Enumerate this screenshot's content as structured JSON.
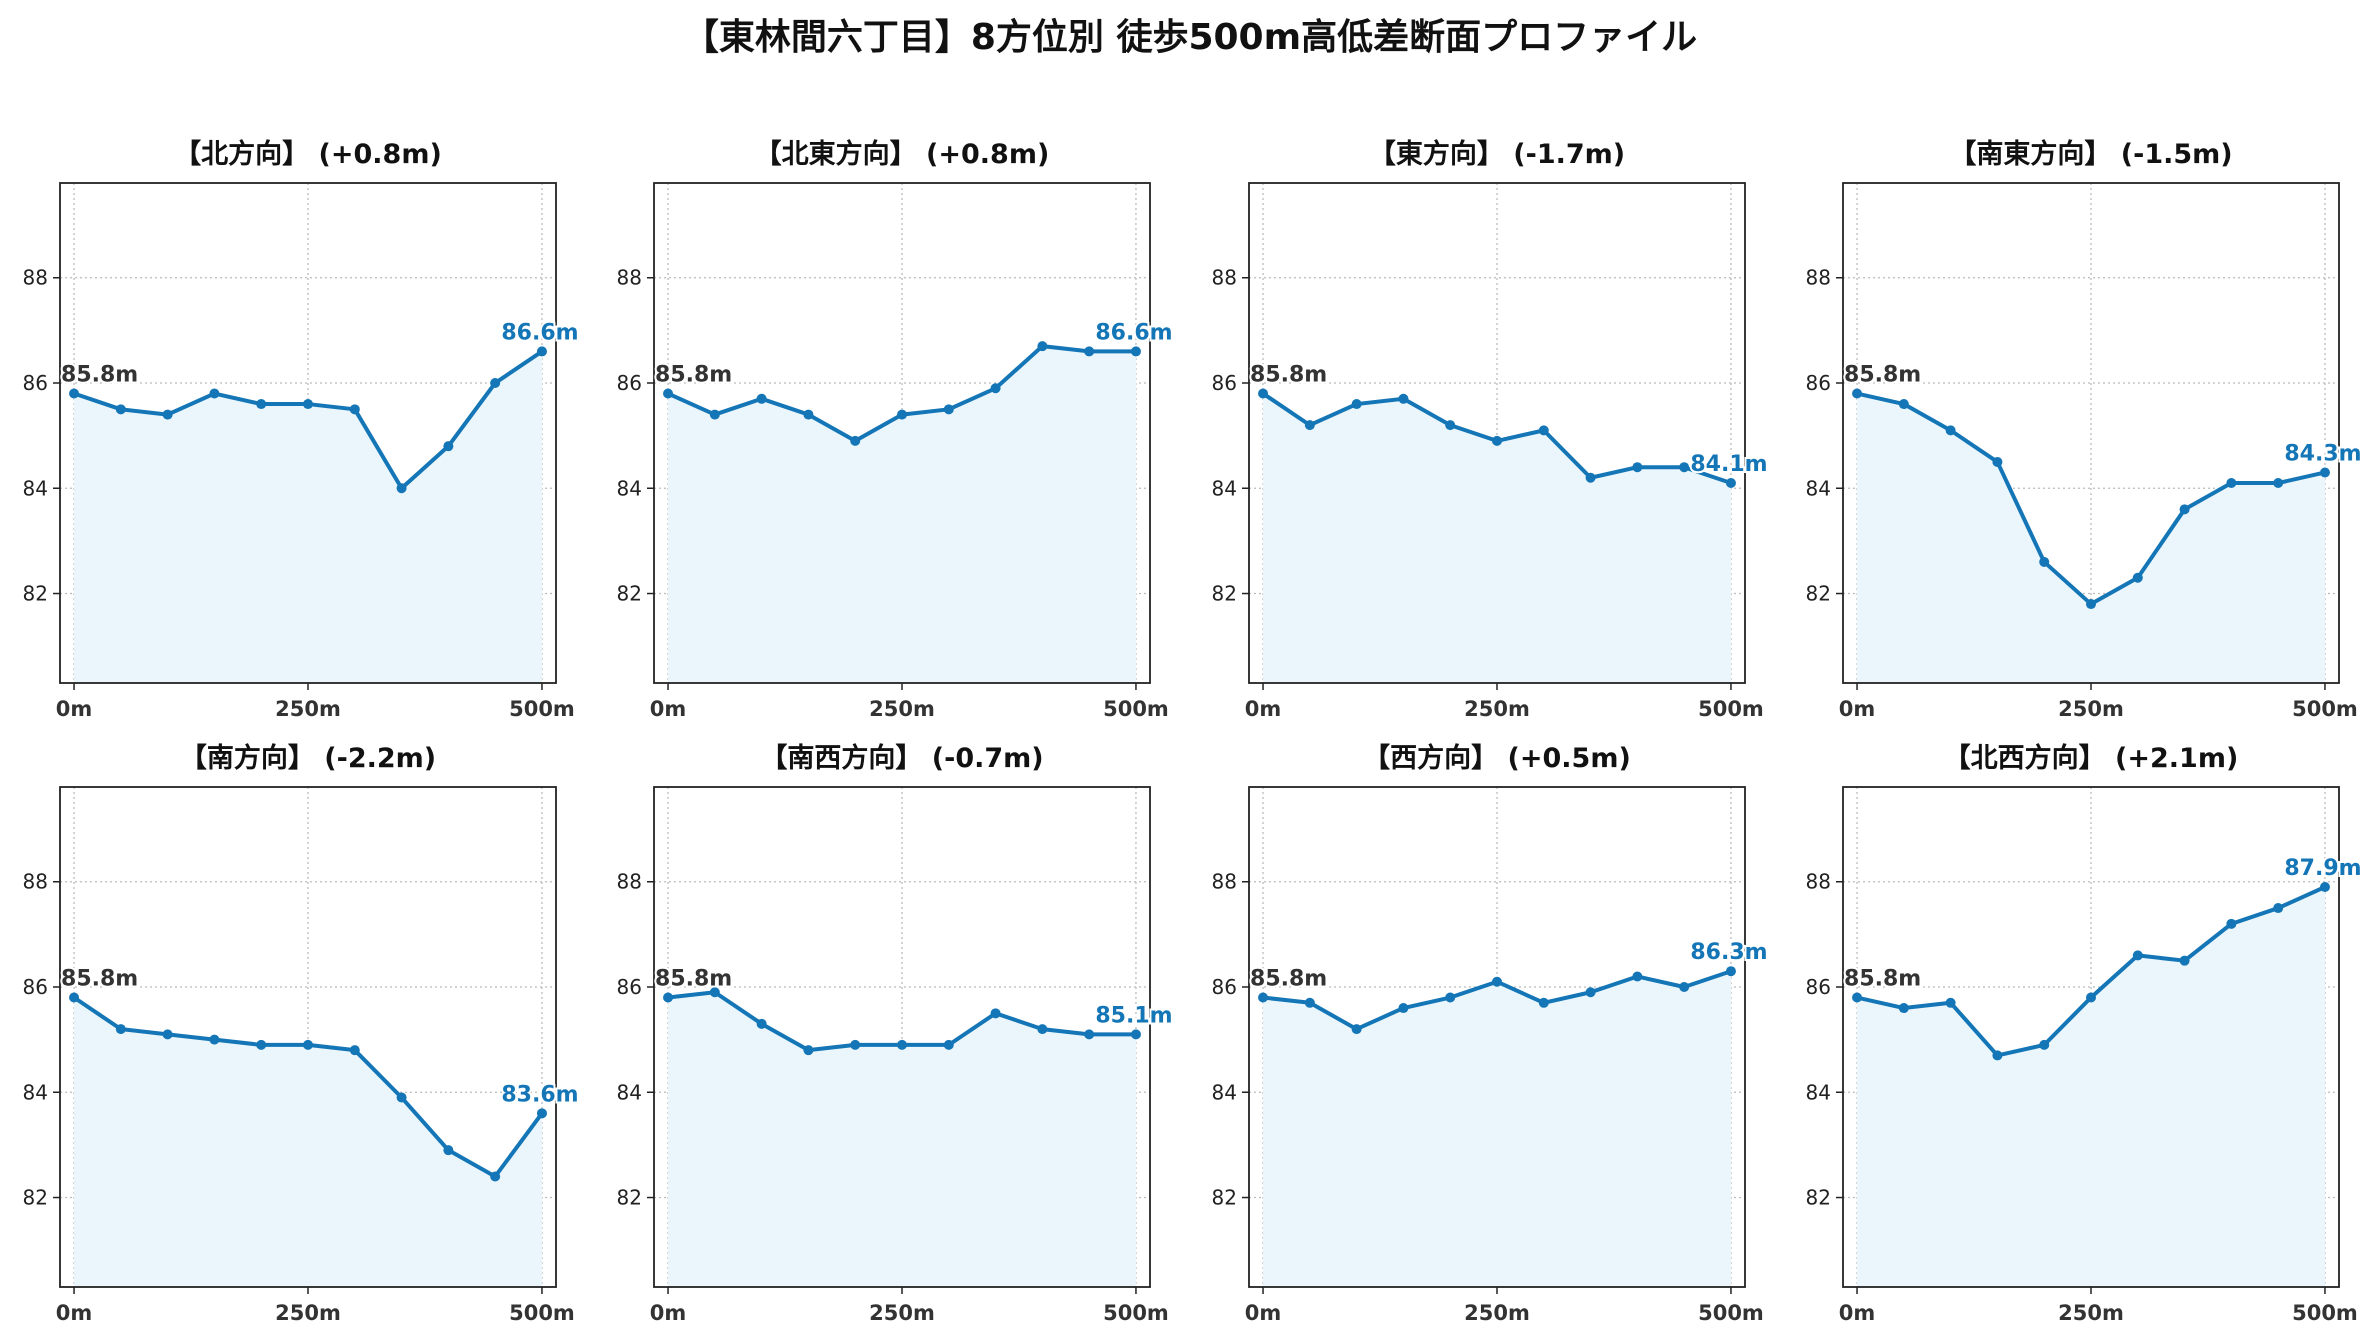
{
  "title": "【東林間六丁目】8方位別 徒歩500m高低差断面プロファイル",
  "colors": {
    "line": "#1476b6",
    "fill": "#eaf6fc",
    "start_label": "#333333",
    "end_label": "#1476b6",
    "grid": "#bbbbbb",
    "axis": "#222222"
  },
  "chart_data": [
    {
      "type": "area",
      "title": "【北方向】 (+0.8m)",
      "x": [
        0,
        50,
        100,
        150,
        200,
        250,
        300,
        350,
        400,
        450,
        500
      ],
      "series": [
        {
          "values": [
            85.8,
            85.5,
            85.4,
            85.8,
            85.6,
            85.6,
            85.5,
            84.0,
            84.8,
            86.0,
            86.6
          ]
        }
      ],
      "start_label": "85.8m",
      "end_label": "86.6m",
      "xticks": [
        {
          "value": 0,
          "label": "0m"
        },
        {
          "value": 250,
          "label": "250m"
        },
        {
          "value": 500,
          "label": "500m"
        }
      ],
      "yticks": [
        82,
        84,
        86,
        88
      ],
      "xlim": [
        -15,
        515
      ],
      "ylim": [
        80.3,
        89.8
      ],
      "grid": true
    },
    {
      "type": "area",
      "title": "【北東方向】 (+0.8m)",
      "x": [
        0,
        50,
        100,
        150,
        200,
        250,
        300,
        350,
        400,
        450,
        500
      ],
      "series": [
        {
          "values": [
            85.8,
            85.4,
            85.7,
            85.4,
            84.9,
            85.4,
            85.5,
            85.9,
            86.7,
            86.6,
            86.6
          ]
        }
      ],
      "start_label": "85.8m",
      "end_label": "86.6m",
      "xticks": [
        {
          "value": 0,
          "label": "0m"
        },
        {
          "value": 250,
          "label": "250m"
        },
        {
          "value": 500,
          "label": "500m"
        }
      ],
      "yticks": [
        82,
        84,
        86,
        88
      ],
      "xlim": [
        -15,
        515
      ],
      "ylim": [
        80.3,
        89.8
      ],
      "grid": true
    },
    {
      "type": "area",
      "title": "【東方向】 (-1.7m)",
      "x": [
        0,
        50,
        100,
        150,
        200,
        250,
        300,
        350,
        400,
        450,
        500
      ],
      "series": [
        {
          "values": [
            85.8,
            85.2,
            85.6,
            85.7,
            85.2,
            84.9,
            85.1,
            84.2,
            84.4,
            84.4,
            84.1
          ]
        }
      ],
      "start_label": "85.8m",
      "end_label": "84.1m",
      "xticks": [
        {
          "value": 0,
          "label": "0m"
        },
        {
          "value": 250,
          "label": "250m"
        },
        {
          "value": 500,
          "label": "500m"
        }
      ],
      "yticks": [
        82,
        84,
        86,
        88
      ],
      "xlim": [
        -15,
        515
      ],
      "ylim": [
        80.3,
        89.8
      ],
      "grid": true
    },
    {
      "type": "area",
      "title": "【南東方向】 (-1.5m)",
      "x": [
        0,
        50,
        100,
        150,
        200,
        250,
        300,
        350,
        400,
        450,
        500
      ],
      "series": [
        {
          "values": [
            85.8,
            85.6,
            85.1,
            84.5,
            82.6,
            81.8,
            82.3,
            83.6,
            84.1,
            84.1,
            84.3
          ]
        }
      ],
      "start_label": "85.8m",
      "end_label": "84.3m",
      "xticks": [
        {
          "value": 0,
          "label": "0m"
        },
        {
          "value": 250,
          "label": "250m"
        },
        {
          "value": 500,
          "label": "500m"
        }
      ],
      "yticks": [
        82,
        84,
        86,
        88
      ],
      "xlim": [
        -15,
        515
      ],
      "ylim": [
        80.3,
        89.8
      ],
      "grid": true
    },
    {
      "type": "area",
      "title": "【南方向】 (-2.2m)",
      "x": [
        0,
        50,
        100,
        150,
        200,
        250,
        300,
        350,
        400,
        450,
        500
      ],
      "series": [
        {
          "values": [
            85.8,
            85.2,
            85.1,
            85.0,
            84.9,
            84.9,
            84.8,
            83.9,
            82.9,
            82.4,
            83.6
          ]
        }
      ],
      "start_label": "85.8m",
      "end_label": "83.6m",
      "xticks": [
        {
          "value": 0,
          "label": "0m"
        },
        {
          "value": 250,
          "label": "250m"
        },
        {
          "value": 500,
          "label": "500m"
        }
      ],
      "yticks": [
        82,
        84,
        86,
        88
      ],
      "xlim": [
        -15,
        515
      ],
      "ylim": [
        80.3,
        89.8
      ],
      "grid": true
    },
    {
      "type": "area",
      "title": "【南西方向】 (-0.7m)",
      "x": [
        0,
        50,
        100,
        150,
        200,
        250,
        300,
        350,
        400,
        450,
        500
      ],
      "series": [
        {
          "values": [
            85.8,
            85.9,
            85.3,
            84.8,
            84.9,
            84.9,
            84.9,
            85.5,
            85.2,
            85.1,
            85.1
          ]
        }
      ],
      "start_label": "85.8m",
      "end_label": "85.1m",
      "xticks": [
        {
          "value": 0,
          "label": "0m"
        },
        {
          "value": 250,
          "label": "250m"
        },
        {
          "value": 500,
          "label": "500m"
        }
      ],
      "yticks": [
        82,
        84,
        86,
        88
      ],
      "xlim": [
        -15,
        515
      ],
      "ylim": [
        80.3,
        89.8
      ],
      "grid": true
    },
    {
      "type": "area",
      "title": "【西方向】 (+0.5m)",
      "x": [
        0,
        50,
        100,
        150,
        200,
        250,
        300,
        350,
        400,
        450,
        500
      ],
      "series": [
        {
          "values": [
            85.8,
            85.7,
            85.2,
            85.6,
            85.8,
            86.1,
            85.7,
            85.9,
            86.2,
            86.0,
            86.3
          ]
        }
      ],
      "start_label": "85.8m",
      "end_label": "86.3m",
      "xticks": [
        {
          "value": 0,
          "label": "0m"
        },
        {
          "value": 250,
          "label": "250m"
        },
        {
          "value": 500,
          "label": "500m"
        }
      ],
      "yticks": [
        82,
        84,
        86,
        88
      ],
      "xlim": [
        -15,
        515
      ],
      "ylim": [
        80.3,
        89.8
      ],
      "grid": true
    },
    {
      "type": "area",
      "title": "【北西方向】 (+2.1m)",
      "x": [
        0,
        50,
        100,
        150,
        200,
        250,
        300,
        350,
        400,
        450,
        500
      ],
      "series": [
        {
          "values": [
            85.8,
            85.6,
            85.7,
            84.7,
            84.9,
            85.8,
            86.6,
            86.5,
            87.2,
            87.5,
            87.9
          ]
        }
      ],
      "start_label": "85.8m",
      "end_label": "87.9m",
      "xticks": [
        {
          "value": 0,
          "label": "0m"
        },
        {
          "value": 250,
          "label": "250m"
        },
        {
          "value": 500,
          "label": "500m"
        }
      ],
      "yticks": [
        82,
        84,
        86,
        88
      ],
      "xlim": [
        -15,
        515
      ],
      "ylim": [
        80.3,
        89.8
      ],
      "grid": true
    }
  ]
}
